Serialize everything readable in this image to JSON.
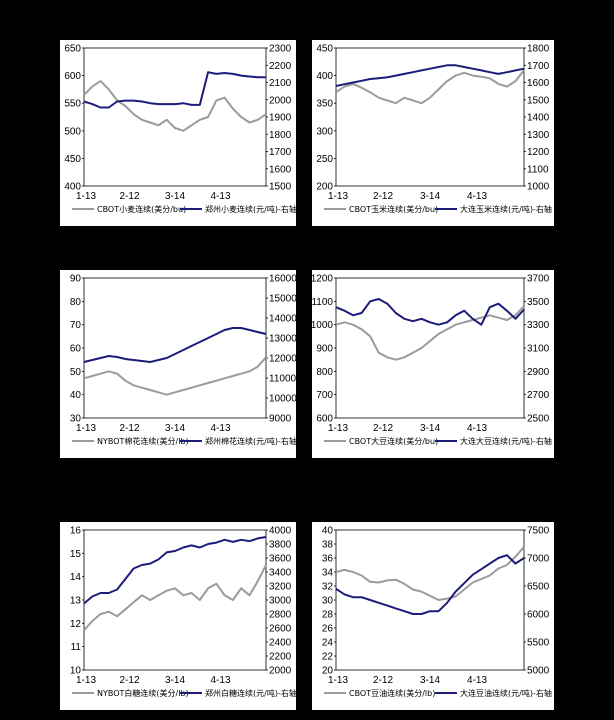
{
  "colors": {
    "left": "#9b9b9b",
    "right": "#1c1c7a",
    "bg": "#ffffff",
    "page": "#000000"
  },
  "chart_data": [
    {
      "type": "line",
      "x_labels": [
        "1-13",
        "2-12",
        "3-14",
        "4-13"
      ],
      "left_ticks": [
        "650",
        "600",
        "550",
        "500",
        "450",
        "400"
      ],
      "right_ticks": [
        "2300",
        "2200",
        "2100",
        "2000",
        "1900",
        "1800",
        "1700",
        "1600",
        "1500"
      ],
      "ylim_left": [
        400,
        650
      ],
      "ylim_right": [
        1500,
        2300
      ],
      "series": [
        {
          "name": "CBOT小麦连续(美分/bu)",
          "axis": "left",
          "values": [
            565,
            580,
            590,
            575,
            555,
            545,
            530,
            520,
            515,
            510,
            520,
            505,
            500,
            510,
            520,
            525,
            555,
            560,
            540,
            525,
            515,
            520,
            530
          ]
        },
        {
          "name": "郑州小麦连续(元/吨)-右轴",
          "axis": "right",
          "values": [
            1990,
            1975,
            1955,
            1955,
            1990,
            1995,
            1995,
            1990,
            1980,
            1975,
            1975,
            1975,
            1980,
            1970,
            1970,
            2160,
            2150,
            2155,
            2150,
            2140,
            2135,
            2130,
            2130
          ]
        }
      ]
    },
    {
      "type": "line",
      "x_labels": [
        "1-13",
        "2-12",
        "3-14",
        "4-13"
      ],
      "left_ticks": [
        "450",
        "400",
        "350",
        "300",
        "250",
        "200"
      ],
      "right_ticks": [
        "1800",
        "1700",
        "1600",
        "1500",
        "1400",
        "1300",
        "1200",
        "1100",
        "1000"
      ],
      "ylim_left": [
        200,
        450
      ],
      "ylim_right": [
        1000,
        1800
      ],
      "series": [
        {
          "name": "CBOT玉米连续(美分/bu)",
          "axis": "left",
          "values": [
            370,
            380,
            385,
            378,
            370,
            360,
            355,
            350,
            360,
            355,
            350,
            360,
            375,
            390,
            400,
            405,
            400,
            398,
            395,
            385,
            380,
            390,
            410
          ]
        },
        {
          "name": "大连玉米连续(元/吨)-右轴",
          "axis": "right",
          "values": [
            1580,
            1590,
            1600,
            1610,
            1620,
            1625,
            1630,
            1640,
            1650,
            1660,
            1670,
            1680,
            1690,
            1700,
            1700,
            1690,
            1680,
            1670,
            1660,
            1650,
            1660,
            1670,
            1680
          ]
        }
      ]
    },
    {
      "type": "line",
      "x_labels": [
        "1-13",
        "2-12",
        "3-14",
        "4-13"
      ],
      "left_ticks": [
        "90",
        "80",
        "70",
        "60",
        "50",
        "40",
        "30"
      ],
      "right_ticks": [
        "16000",
        "15000",
        "14000",
        "13000",
        "12000",
        "11000",
        "10000",
        "9000"
      ],
      "ylim_left": [
        30,
        90
      ],
      "ylim_right": [
        9000,
        16000
      ],
      "series": [
        {
          "name": "NYBOT棉花连续(美分/lb)",
          "axis": "left",
          "values": [
            47,
            48,
            49,
            50,
            49,
            46,
            44,
            43,
            42,
            41,
            40,
            41,
            42,
            43,
            44,
            45,
            46,
            47,
            48,
            49,
            50,
            52,
            56
          ]
        },
        {
          "name": "郑州棉花连续(元/吨)-右轴",
          "axis": "right",
          "values": [
            11800,
            11900,
            12000,
            12100,
            12050,
            11950,
            11900,
            11850,
            11800,
            11900,
            12000,
            12200,
            12400,
            12600,
            12800,
            13000,
            13200,
            13400,
            13500,
            13500,
            13400,
            13300,
            13200
          ]
        }
      ]
    },
    {
      "type": "line",
      "x_labels": [
        "1-13",
        "2-12",
        "3-14",
        "4-13"
      ],
      "left_ticks": [
        "1200",
        "1100",
        "1000",
        "900",
        "800",
        "700",
        "600"
      ],
      "right_ticks": [
        "3700",
        "3500",
        "3300",
        "3100",
        "2900",
        "2700",
        "2500"
      ],
      "ylim_left": [
        600,
        1200
      ],
      "ylim_right": [
        2500,
        3700
      ],
      "series": [
        {
          "name": "CBOT大豆连续(美分/bu)",
          "axis": "left",
          "values": [
            1000,
            1010,
            1000,
            980,
            950,
            880,
            860,
            850,
            860,
            880,
            900,
            930,
            960,
            980,
            1000,
            1010,
            1020,
            1030,
            1040,
            1030,
            1020,
            1040,
            1080
          ]
        },
        {
          "name": "大连大豆连续(元/吨)-右轴",
          "axis": "right",
          "values": [
            3450,
            3420,
            3380,
            3400,
            3500,
            3520,
            3480,
            3400,
            3350,
            3330,
            3350,
            3320,
            3300,
            3320,
            3380,
            3420,
            3350,
            3300,
            3450,
            3480,
            3420,
            3350,
            3430
          ]
        }
      ]
    },
    {
      "type": "line",
      "x_labels": [
        "1-13",
        "2-12",
        "3-14",
        "4-13"
      ],
      "left_ticks": [
        "16",
        "15",
        "14",
        "13",
        "12",
        "11",
        "10"
      ],
      "right_ticks": [
        "4000",
        "3800",
        "3600",
        "3400",
        "3200",
        "3000",
        "2800",
        "2600",
        "2400",
        "2200",
        "2000"
      ],
      "ylim_left": [
        10,
        16
      ],
      "ylim_right": [
        2000,
        4000
      ],
      "series": [
        {
          "name": "NYBOT白糖连续(美分/lb)",
          "axis": "left",
          "values": [
            11.7,
            12.1,
            12.4,
            12.5,
            12.3,
            12.6,
            12.9,
            13.2,
            13.0,
            13.2,
            13.4,
            13.5,
            13.2,
            13.3,
            13.0,
            13.5,
            13.7,
            13.2,
            13.0,
            13.5,
            13.2,
            13.8,
            14.5
          ]
        },
        {
          "name": "郑州白糖连续(元/吨)-右轴",
          "axis": "right",
          "values": [
            2950,
            3050,
            3100,
            3100,
            3150,
            3300,
            3450,
            3500,
            3520,
            3580,
            3680,
            3700,
            3750,
            3780,
            3750,
            3800,
            3820,
            3860,
            3830,
            3860,
            3840,
            3880,
            3900
          ]
        }
      ]
    },
    {
      "type": "line",
      "x_labels": [
        "1-13",
        "2-12",
        "3-14",
        "4-13"
      ],
      "left_ticks": [
        "40",
        "38",
        "36",
        "34",
        "32",
        "30",
        "28",
        "26",
        "24",
        "22",
        "20"
      ],
      "right_ticks": [
        "7500",
        "7000",
        "6500",
        "6000",
        "5500",
        "5000"
      ],
      "ylim_left": [
        20,
        40
      ],
      "ylim_right": [
        5000,
        7500
      ],
      "series": [
        {
          "name": "CBOT豆油连续(美分/lb)",
          "axis": "left",
          "values": [
            34,
            34.3,
            34,
            33.5,
            32.6,
            32.5,
            32.8,
            32.9,
            32.3,
            31.5,
            31.2,
            30.6,
            30,
            30.2,
            30.5,
            31.5,
            32.5,
            33,
            33.5,
            34.5,
            35,
            36.2,
            37.6
          ]
        },
        {
          "name": "大连豆油连续(元/吨)-右轴",
          "axis": "right",
          "values": [
            6450,
            6350,
            6300,
            6300,
            6250,
            6200,
            6150,
            6100,
            6050,
            6000,
            6000,
            6050,
            6050,
            6200,
            6400,
            6550,
            6700,
            6800,
            6900,
            7000,
            7050,
            6900,
            7000
          ]
        }
      ]
    }
  ]
}
